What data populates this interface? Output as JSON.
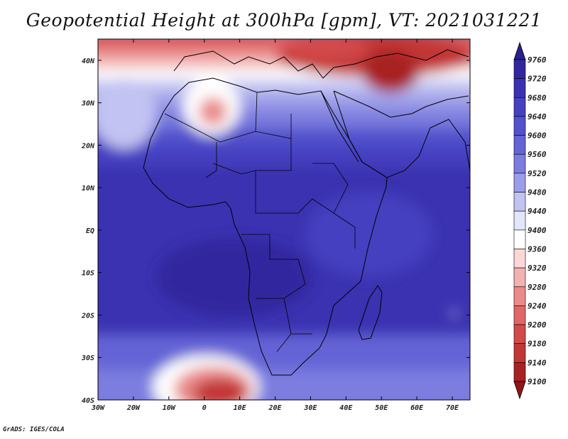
{
  "title": "Geopotential Height at 300hPa [gpm], VT: 2021031221",
  "map": {
    "lon_range": [
      -30,
      75
    ],
    "lat_range": [
      -40,
      45
    ],
    "x_ticks": [
      {
        "value": -30,
        "label": "30W"
      },
      {
        "value": -20,
        "label": "20W"
      },
      {
        "value": -10,
        "label": "10W"
      },
      {
        "value": 0,
        "label": "0"
      },
      {
        "value": 10,
        "label": "10E"
      },
      {
        "value": 20,
        "label": "20E"
      },
      {
        "value": 30,
        "label": "30E"
      },
      {
        "value": 40,
        "label": "40E"
      },
      {
        "value": 50,
        "label": "50E"
      },
      {
        "value": 60,
        "label": "60E"
      },
      {
        "value": 70,
        "label": "70E"
      }
    ],
    "y_ticks": [
      {
        "value": 40,
        "label": "40N"
      },
      {
        "value": 30,
        "label": "30N"
      },
      {
        "value": 20,
        "label": "20N"
      },
      {
        "value": 10,
        "label": "10N"
      },
      {
        "value": 0,
        "label": "EQ"
      },
      {
        "value": -10,
        "label": "10S"
      },
      {
        "value": -20,
        "label": "20S"
      },
      {
        "value": -30,
        "label": "30S"
      },
      {
        "value": -40,
        "label": "40S"
      }
    ]
  },
  "colorbar": {
    "levels": [
      9760,
      9720,
      9680,
      9640,
      9600,
      9560,
      9520,
      9480,
      9440,
      9400,
      9360,
      9320,
      9280,
      9240,
      9200,
      9180,
      9140,
      9100
    ],
    "colors": [
      "#2a1f8c",
      "#31289f",
      "#3a32b0",
      "#4541c0",
      "#5351cc",
      "#6464d6",
      "#7c7ddf",
      "#9c9de8",
      "#c2c3f2",
      "#e4e4fa",
      "#ffffff",
      "#fad8d8",
      "#f3b1b1",
      "#ea8a8a",
      "#e06767",
      "#d24a4a",
      "#c23636",
      "#a82222",
      "#8f1616"
    ]
  },
  "credit": "GrADS: IGES/COLA"
}
